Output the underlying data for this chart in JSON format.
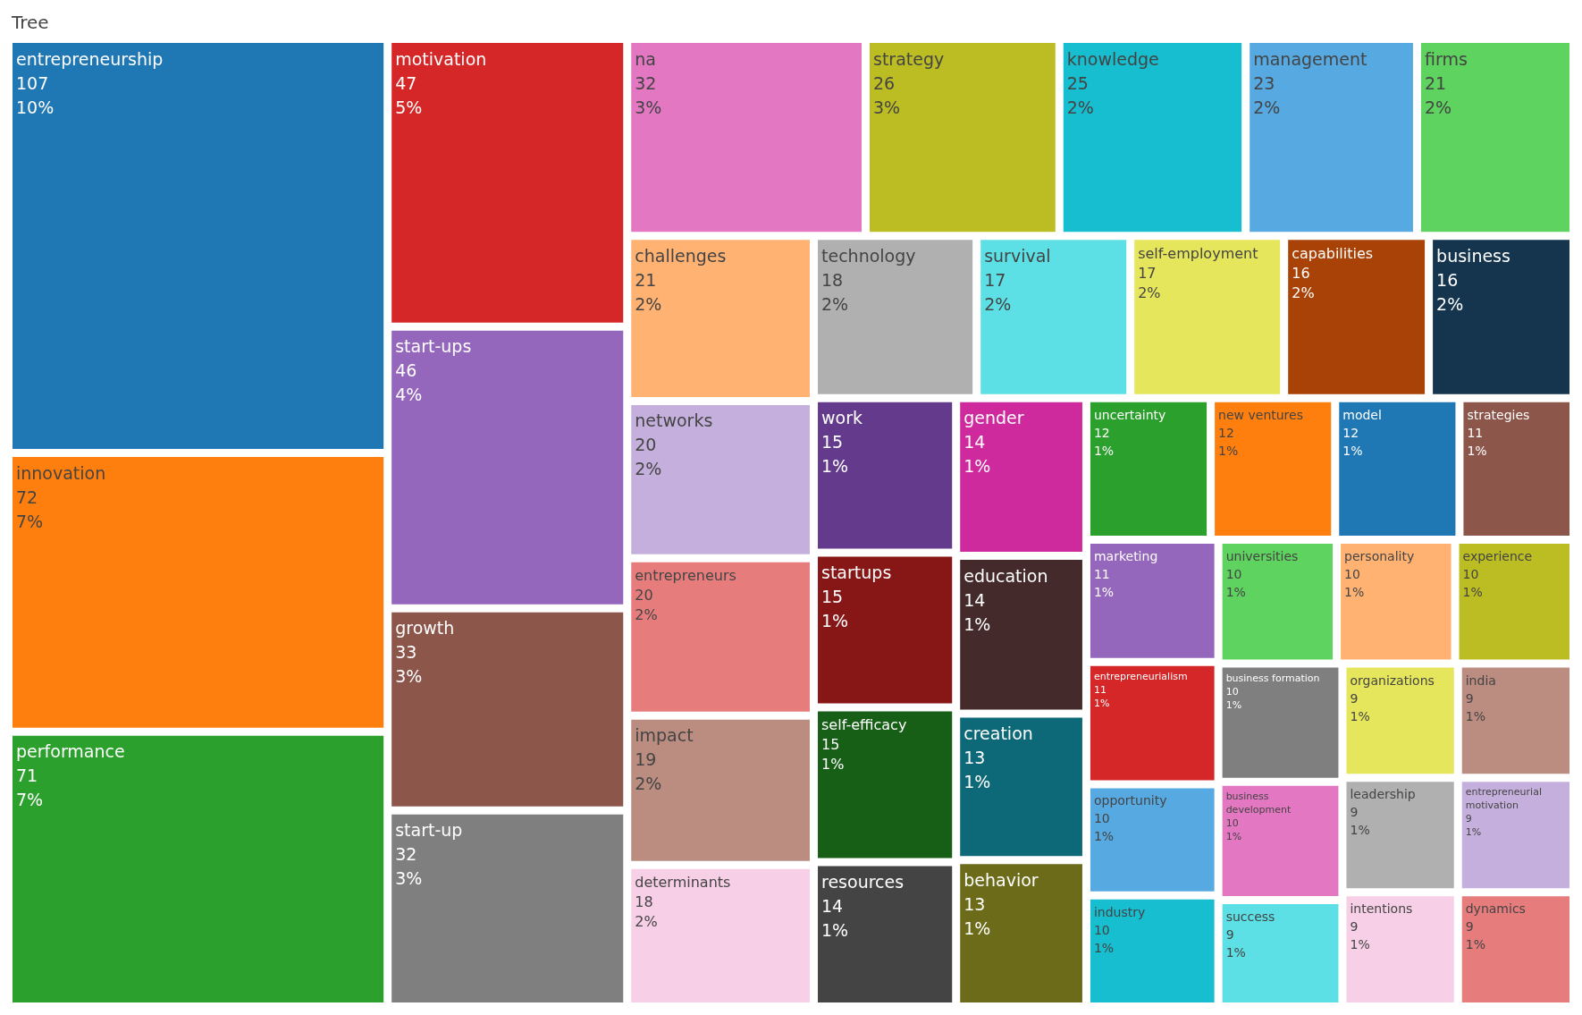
{
  "chart_data": {
    "type": "other",
    "title": "Tree",
    "data_labels": true,
    "categories": [
      "entrepreneurship",
      "innovation",
      "performance",
      "motivation",
      "start-ups",
      "growth",
      "na",
      "start-up",
      "strategy",
      "knowledge",
      "management",
      "challenges",
      "firms",
      "technology",
      "self-employment",
      "survival",
      "business",
      "capabilities",
      "entrepreneurs",
      "networks",
      "impact",
      "determinants",
      "self-efficacy",
      "startups",
      "work",
      "education",
      "gender",
      "resources",
      "behavior",
      "creation",
      "model",
      "new ventures",
      "uncertainty",
      "entrepreneurialism",
      "marketing",
      "strategies",
      "business development",
      "business formation",
      "experience",
      "personality",
      "universities",
      "dynamics",
      "industry",
      "entrepreneurial motivation",
      "intentions",
      "leadership",
      "opportunity",
      "india",
      "organizations",
      "success"
    ],
    "values": [
      107,
      72,
      71,
      47,
      46,
      33,
      32,
      32,
      26,
      25,
      23,
      21,
      21,
      18,
      17,
      17,
      16,
      16,
      20,
      20,
      19,
      18,
      15,
      15,
      15,
      14,
      14,
      14,
      13,
      13,
      12,
      12,
      12,
      11,
      11,
      11,
      10,
      10,
      10,
      10,
      10,
      9,
      10,
      9,
      9,
      9,
      10,
      9,
      9,
      9
    ],
    "annotations": [
      {
        "text": "10%",
        "x": "entrepreneurship"
      },
      {
        "text": "7%",
        "x": "innovation"
      },
      {
        "text": "7%",
        "x": "performance"
      },
      {
        "text": "5%",
        "x": "motivation"
      },
      {
        "text": "4%",
        "x": "start-ups"
      },
      {
        "text": "3%",
        "x": "growth"
      },
      {
        "text": "3%",
        "x": "na"
      },
      {
        "text": "3%",
        "x": "start-up"
      },
      {
        "text": "3%",
        "x": "strategy"
      },
      {
        "text": "2%",
        "x": "knowledge"
      },
      {
        "text": "2%",
        "x": "management"
      },
      {
        "text": "2%",
        "x": "challenges"
      },
      {
        "text": "2%",
        "x": "firms"
      },
      {
        "text": "2%",
        "x": "technology"
      },
      {
        "text": "2%",
        "x": "self-employment"
      },
      {
        "text": "2%",
        "x": "survival"
      },
      {
        "text": "2%",
        "x": "business"
      },
      {
        "text": "2%",
        "x": "capabilities"
      },
      {
        "text": "2%",
        "x": "entrepreneurs"
      },
      {
        "text": "2%",
        "x": "networks"
      },
      {
        "text": "2%",
        "x": "impact"
      },
      {
        "text": "2%",
        "x": "determinants"
      },
      {
        "text": "1%",
        "x": "self-efficacy"
      },
      {
        "text": "1%",
        "x": "startups"
      },
      {
        "text": "1%",
        "x": "work"
      },
      {
        "text": "1%",
        "x": "education"
      },
      {
        "text": "1%",
        "x": "gender"
      },
      {
        "text": "1%",
        "x": "resources"
      },
      {
        "text": "1%",
        "x": "behavior"
      },
      {
        "text": "1%",
        "x": "creation"
      },
      {
        "text": "1%",
        "x": "model"
      },
      {
        "text": "1%",
        "x": "new ventures"
      },
      {
        "text": "1%",
        "x": "uncertainty"
      },
      {
        "text": "1%",
        "x": "entrepreneurialism"
      },
      {
        "text": "1%",
        "x": "marketing"
      },
      {
        "text": "1%",
        "x": "strategies"
      },
      {
        "text": "1%",
        "x": "business development"
      },
      {
        "text": "1%",
        "x": "business formation"
      },
      {
        "text": "1%",
        "x": "experience"
      },
      {
        "text": "1%",
        "x": "personality"
      },
      {
        "text": "1%",
        "x": "universities"
      },
      {
        "text": "1%",
        "x": "dynamics"
      },
      {
        "text": "1%",
        "x": "industry"
      },
      {
        "text": "1%",
        "x": "entrepreneurial motivation"
      },
      {
        "text": "1%",
        "x": "intentions"
      },
      {
        "text": "1%",
        "x": "leadership"
      },
      {
        "text": "1%",
        "x": "opportunity"
      },
      {
        "text": "1%",
        "x": "india"
      },
      {
        "text": "1%",
        "x": "organizations"
      },
      {
        "text": "1%",
        "x": "success"
      }
    ],
    "colors": [
      "#1f77b4",
      "#ff7f0e",
      "#2ca02c",
      "#d62728",
      "#9467bd",
      "#8c564b",
      "#e377c2",
      "#7f7f7f",
      "#bcbd22",
      "#17becf",
      "#57a9e2",
      "#ffb272",
      "#5fd35f",
      "#b0b0b0",
      "#e6e65c",
      "#5ce0e6",
      "#15354f",
      "#a84207",
      "#e77c7c",
      "#c5b0dd",
      "#bb8c80",
      "#f7cfe6",
      "#175e17",
      "#871717",
      "#643b8c",
      "#442a2a",
      "#ce2a9e",
      "#444444",
      "#6b6b19",
      "#0d6877",
      "#1f77b4",
      "#ff7f0e",
      "#2ca02c",
      "#d62728",
      "#9467bd",
      "#8c564b",
      "#e377c2",
      "#7f7f7f",
      "#bcbd22",
      "#ffb272",
      "#5fd35f",
      "#e77c7c",
      "#17becf",
      "#c5b0dd",
      "#f7cfe6",
      "#b0b0b0",
      "#57a9e2",
      "#bb8c80",
      "#e6e65c",
      "#5ce0e6"
    ]
  }
}
